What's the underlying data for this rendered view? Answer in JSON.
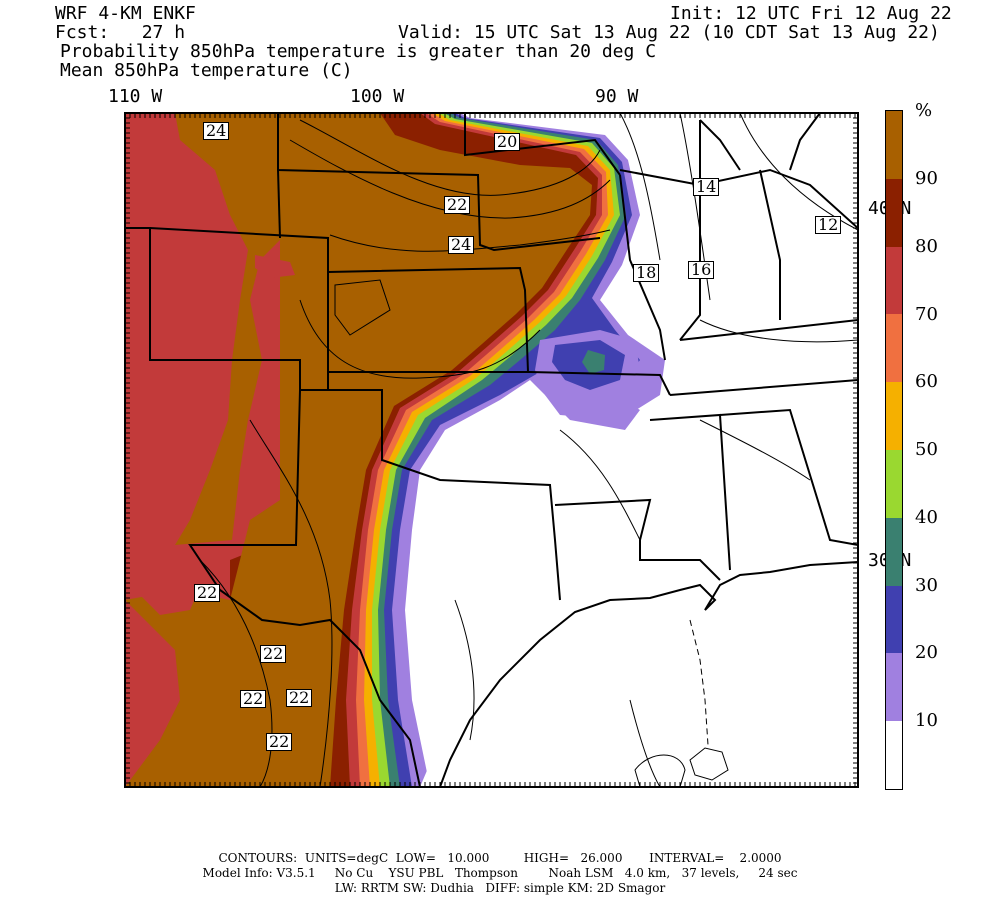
{
  "header": {
    "model": "WRF 4-KM ENKF",
    "fcst": "Fcst:   27 h",
    "init": "Init: 12 UTC Fri 12 Aug 22",
    "valid": "Valid: 15 UTC Sat 13 Aug 22 (10 CDT Sat 13 Aug 22)",
    "title1": "Probability 850hPa temperature is greater than 20 deg C",
    "title2": "Mean 850hPa temperature (C)"
  },
  "map": {
    "longitude_labels": [
      "110 W",
      "100 W",
      "90 W"
    ],
    "latitude_labels": [
      "40 N",
      "30 N"
    ],
    "contour_labels": [
      "24",
      "20",
      "22",
      "24",
      "14",
      "12",
      "18",
      "16",
      "22",
      "22",
      "22",
      "22",
      "22"
    ]
  },
  "legend": {
    "unit": "%",
    "levels": [
      "90",
      "80",
      "70",
      "60",
      "50",
      "40",
      "30",
      "20",
      "10"
    ],
    "colors": [
      "#a86000",
      "#8b2000",
      "#c23a3a",
      "#f07040",
      "#f5b000",
      "#9ad830",
      "#3a8070",
      "#4040b0",
      "#a080e0",
      "#ffffff"
    ]
  },
  "footer": {
    "line1": "CONTOURS:  UNITS=degC  LOW=   10.000         HIGH=   26.000       INTERVAL=    2.0000",
    "line2": "Model Info: V3.5.1     No Cu    YSU PBL   Thompson        Noah LSM   4.0 km,   37 levels,     24 sec",
    "line3": "LW: RRTM SW: Dudhia   DIFF: simple KM: 2D Smagor"
  }
}
